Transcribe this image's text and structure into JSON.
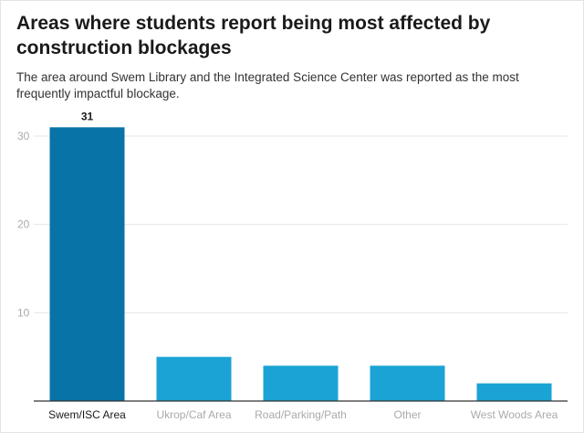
{
  "header": {
    "title": "Areas where students report being most affected by construction blockages",
    "subtitle": "The area around Swem Library and the Integrated Science Center was reported as the most frequently impactful blockage."
  },
  "chart_data": {
    "type": "bar",
    "categories": [
      "Swem/ISC Area",
      "Ukrop/Caf Area",
      "Road/Parking/Path",
      "Other",
      "West Woods Area"
    ],
    "values": [
      31,
      5,
      4,
      4,
      2
    ],
    "title": "Areas where students report being most affected by construction blockages",
    "subtitle": "The area around Swem Library and the Integrated Science Center was reported as the most frequently impactful blockage.",
    "xlabel": "",
    "ylabel": "",
    "ylim": [
      0,
      30
    ],
    "yticks": [
      10,
      20,
      30
    ],
    "grid": true,
    "legend": "none",
    "data_labels": [
      "31"
    ],
    "highlighted_category": "Swem/ISC Area",
    "colors": {
      "highlight_bar": "#0873a6",
      "bar": "#1aa3d4",
      "gridline": "#e6e6e6",
      "axis": "#333333"
    }
  }
}
